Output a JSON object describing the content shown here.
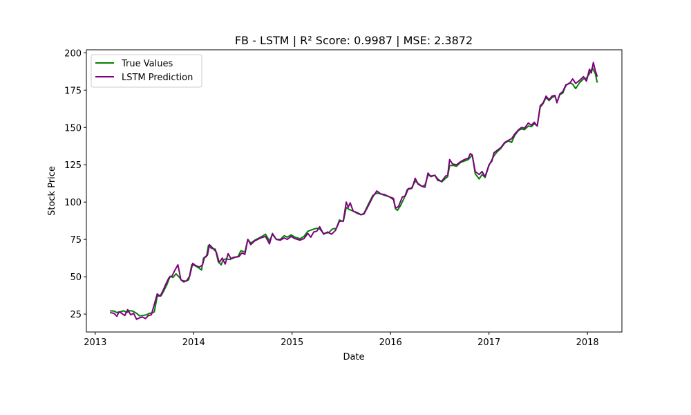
{
  "chart_data": {
    "type": "line",
    "title": "FB - LSTM | R² Score: 0.9987 | MSE: 2.3872",
    "xlabel": "Date",
    "ylabel": "Stock Price",
    "x_ticks": [
      "2013",
      "2014",
      "2015",
      "2016",
      "2017",
      "2018"
    ],
    "y_ticks": [
      25,
      50,
      75,
      100,
      125,
      150,
      175,
      200
    ],
    "xlim": [
      2012.91,
      2018.35
    ],
    "ylim": [
      13,
      202
    ],
    "grid": false,
    "legend_placement": "top-left",
    "colors": {
      "true_values": "#008000",
      "lstm_prediction": "#800080"
    },
    "series": [
      {
        "name": "True Values",
        "color": "#008000",
        "points": [
          [
            2013.15,
            27.2
          ],
          [
            2013.19,
            27.0
          ],
          [
            2013.22,
            26.0
          ],
          [
            2013.25,
            26.5
          ],
          [
            2013.29,
            27.2
          ],
          [
            2013.32,
            26.0
          ],
          [
            2013.35,
            27.3
          ],
          [
            2013.38,
            27.0
          ],
          [
            2013.42,
            25.5
          ],
          [
            2013.45,
            23.8
          ],
          [
            2013.48,
            24.0
          ],
          [
            2013.52,
            24.5
          ],
          [
            2013.55,
            25.5
          ],
          [
            2013.58,
            25.8
          ],
          [
            2013.6,
            26.5
          ],
          [
            2013.63,
            37.0
          ],
          [
            2013.67,
            37.3
          ],
          [
            2013.7,
            41.0
          ],
          [
            2013.73,
            45.0
          ],
          [
            2013.76,
            50.3
          ],
          [
            2013.79,
            49.5
          ],
          [
            2013.82,
            52.0
          ],
          [
            2013.85,
            50.0
          ],
          [
            2013.88,
            47.5
          ],
          [
            2013.92,
            47.0
          ],
          [
            2013.95,
            48.0
          ],
          [
            2013.98,
            58.0
          ],
          [
            2014.01,
            57.5
          ],
          [
            2014.05,
            56.0
          ],
          [
            2014.08,
            54.5
          ],
          [
            2014.1,
            62.5
          ],
          [
            2014.13,
            63.5
          ],
          [
            2014.15,
            71.0
          ],
          [
            2014.18,
            69.0
          ],
          [
            2014.22,
            68.5
          ],
          [
            2014.25,
            60.0
          ],
          [
            2014.28,
            58.0
          ],
          [
            2014.3,
            61.5
          ],
          [
            2014.33,
            62.0
          ],
          [
            2014.37,
            61.5
          ],
          [
            2014.4,
            63.0
          ],
          [
            2014.45,
            63.5
          ],
          [
            2014.48,
            67.5
          ],
          [
            2014.52,
            66.5
          ],
          [
            2014.55,
            75.0
          ],
          [
            2014.58,
            72.5
          ],
          [
            2014.62,
            74.5
          ],
          [
            2014.68,
            76.5
          ],
          [
            2014.73,
            78.5
          ],
          [
            2014.77,
            74.0
          ],
          [
            2014.8,
            78.5
          ],
          [
            2014.84,
            75.0
          ],
          [
            2014.88,
            75.0
          ],
          [
            2014.92,
            77.5
          ],
          [
            2014.95,
            76.5
          ],
          [
            2014.99,
            78.0
          ],
          [
            2015.03,
            76.5
          ],
          [
            2015.08,
            75.5
          ],
          [
            2015.12,
            77.0
          ],
          [
            2015.16,
            80.5
          ],
          [
            2015.2,
            81.5
          ],
          [
            2015.25,
            82.5
          ],
          [
            2015.28,
            82.0
          ],
          [
            2015.32,
            79.0
          ],
          [
            2015.37,
            79.5
          ],
          [
            2015.41,
            82.0
          ],
          [
            2015.45,
            82.5
          ],
          [
            2015.48,
            88.0
          ],
          [
            2015.52,
            87.0
          ],
          [
            2015.55,
            96.5
          ],
          [
            2015.58,
            95.0
          ],
          [
            2015.62,
            94.0
          ],
          [
            2015.66,
            92.5
          ],
          [
            2015.7,
            91.5
          ],
          [
            2015.73,
            92.5
          ],
          [
            2015.77,
            98.0
          ],
          [
            2015.82,
            104.5
          ],
          [
            2015.86,
            106.0
          ],
          [
            2015.9,
            105.5
          ],
          [
            2015.94,
            104.5
          ],
          [
            2015.99,
            103.5
          ],
          [
            2016.03,
            101.5
          ],
          [
            2016.05,
            95.5
          ],
          [
            2016.07,
            94.5
          ],
          [
            2016.1,
            97.5
          ],
          [
            2016.14,
            103.0
          ],
          [
            2016.17,
            108.5
          ],
          [
            2016.21,
            109.0
          ],
          [
            2016.25,
            114.0
          ],
          [
            2016.28,
            112.5
          ],
          [
            2016.32,
            110.5
          ],
          [
            2016.35,
            111.5
          ],
          [
            2016.38,
            118.0
          ],
          [
            2016.41,
            117.5
          ],
          [
            2016.45,
            118.0
          ],
          [
            2016.48,
            115.5
          ],
          [
            2016.52,
            113.5
          ],
          [
            2016.56,
            116.0
          ],
          [
            2016.58,
            117.0
          ],
          [
            2016.6,
            124.5
          ],
          [
            2016.64,
            124.5
          ],
          [
            2016.67,
            124.0
          ],
          [
            2016.71,
            126.5
          ],
          [
            2016.75,
            127.5
          ],
          [
            2016.79,
            128.5
          ],
          [
            2016.81,
            130.0
          ],
          [
            2016.83,
            131.5
          ],
          [
            2016.86,
            119.0
          ],
          [
            2016.9,
            115.5
          ],
          [
            2016.93,
            118.5
          ],
          [
            2016.96,
            116.5
          ],
          [
            2017.0,
            124.5
          ],
          [
            2017.03,
            128.5
          ],
          [
            2017.05,
            131.0
          ],
          [
            2017.08,
            133.5
          ],
          [
            2017.12,
            136.0
          ],
          [
            2017.16,
            139.5
          ],
          [
            2017.2,
            141.0
          ],
          [
            2017.23,
            140.0
          ],
          [
            2017.26,
            144.5
          ],
          [
            2017.3,
            148.0
          ],
          [
            2017.33,
            149.0
          ],
          [
            2017.36,
            148.5
          ],
          [
            2017.4,
            151.0
          ],
          [
            2017.43,
            150.5
          ],
          [
            2017.46,
            152.5
          ],
          [
            2017.49,
            151.0
          ],
          [
            2017.52,
            163.5
          ],
          [
            2017.55,
            166.0
          ],
          [
            2017.58,
            170.0
          ],
          [
            2017.61,
            168.0
          ],
          [
            2017.64,
            170.0
          ],
          [
            2017.67,
            171.0
          ],
          [
            2017.69,
            167.0
          ],
          [
            2017.72,
            172.0
          ],
          [
            2017.75,
            173.0
          ],
          [
            2017.78,
            178.0
          ],
          [
            2017.82,
            180.0
          ],
          [
            2017.85,
            179.0
          ],
          [
            2017.88,
            176.0
          ],
          [
            2017.92,
            180.0
          ],
          [
            2017.96,
            182.5
          ],
          [
            2017.99,
            183.0
          ],
          [
            2018.02,
            186.0
          ],
          [
            2018.05,
            190.0
          ],
          [
            2018.08,
            186.0
          ],
          [
            2018.1,
            180.0
          ]
        ]
      },
      {
        "name": "LSTM Prediction",
        "color": "#800080",
        "points": [
          [
            2013.15,
            26.0
          ],
          [
            2013.19,
            25.5
          ],
          [
            2013.22,
            23.5
          ],
          [
            2013.24,
            26.5
          ],
          [
            2013.27,
            25.5
          ],
          [
            2013.3,
            24.0
          ],
          [
            2013.33,
            28.0
          ],
          [
            2013.36,
            24.5
          ],
          [
            2013.39,
            25.5
          ],
          [
            2013.42,
            21.5
          ],
          [
            2013.45,
            22.5
          ],
          [
            2013.48,
            23.0
          ],
          [
            2013.51,
            22.0
          ],
          [
            2013.54,
            24.0
          ],
          [
            2013.57,
            24.5
          ],
          [
            2013.6,
            31.5
          ],
          [
            2013.63,
            38.5
          ],
          [
            2013.66,
            37.0
          ],
          [
            2013.69,
            41.0
          ],
          [
            2013.72,
            45.5
          ],
          [
            2013.75,
            49.5
          ],
          [
            2013.78,
            50.5
          ],
          [
            2013.81,
            54.5
          ],
          [
            2013.84,
            58.0
          ],
          [
            2013.87,
            48.0
          ],
          [
            2013.9,
            46.5
          ],
          [
            2013.93,
            47.5
          ],
          [
            2013.96,
            50.5
          ],
          [
            2013.99,
            59.0
          ],
          [
            2014.02,
            57.5
          ],
          [
            2014.06,
            56.5
          ],
          [
            2014.09,
            58.0
          ],
          [
            2014.11,
            63.0
          ],
          [
            2014.14,
            64.5
          ],
          [
            2014.16,
            71.5
          ],
          [
            2014.19,
            69.5
          ],
          [
            2014.23,
            66.5
          ],
          [
            2014.26,
            59.5
          ],
          [
            2014.29,
            62.5
          ],
          [
            2014.32,
            58.5
          ],
          [
            2014.35,
            65.5
          ],
          [
            2014.38,
            62.0
          ],
          [
            2014.42,
            63.0
          ],
          [
            2014.46,
            63.5
          ],
          [
            2014.49,
            66.0
          ],
          [
            2014.52,
            65.0
          ],
          [
            2014.55,
            75.0
          ],
          [
            2014.58,
            71.5
          ],
          [
            2014.62,
            74.0
          ],
          [
            2014.68,
            76.0
          ],
          [
            2014.73,
            77.0
          ],
          [
            2014.77,
            72.0
          ],
          [
            2014.8,
            79.0
          ],
          [
            2014.84,
            75.0
          ],
          [
            2014.88,
            74.5
          ],
          [
            2014.92,
            76.0
          ],
          [
            2014.95,
            75.0
          ],
          [
            2014.99,
            77.0
          ],
          [
            2015.03,
            75.5
          ],
          [
            2015.08,
            74.5
          ],
          [
            2015.12,
            75.5
          ],
          [
            2015.16,
            79.0
          ],
          [
            2015.19,
            76.5
          ],
          [
            2015.22,
            80.0
          ],
          [
            2015.25,
            80.5
          ],
          [
            2015.28,
            83.5
          ],
          [
            2015.32,
            78.5
          ],
          [
            2015.36,
            80.0
          ],
          [
            2015.4,
            78.5
          ],
          [
            2015.44,
            81.0
          ],
          [
            2015.48,
            87.0
          ],
          [
            2015.52,
            87.5
          ],
          [
            2015.55,
            100.0
          ],
          [
            2015.57,
            96.5
          ],
          [
            2015.59,
            99.5
          ],
          [
            2015.62,
            94.0
          ],
          [
            2015.66,
            93.0
          ],
          [
            2015.7,
            91.5
          ],
          [
            2015.73,
            92.0
          ],
          [
            2015.77,
            97.0
          ],
          [
            2015.82,
            103.5
          ],
          [
            2015.86,
            107.5
          ],
          [
            2015.9,
            105.5
          ],
          [
            2015.94,
            105.0
          ],
          [
            2015.99,
            103.5
          ],
          [
            2016.03,
            102.5
          ],
          [
            2016.05,
            96.0
          ],
          [
            2016.08,
            97.0
          ],
          [
            2016.12,
            103.5
          ],
          [
            2016.15,
            104.0
          ],
          [
            2016.18,
            109.0
          ],
          [
            2016.22,
            109.5
          ],
          [
            2016.25,
            116.0
          ],
          [
            2016.28,
            112.0
          ],
          [
            2016.32,
            110.5
          ],
          [
            2016.35,
            110.0
          ],
          [
            2016.38,
            119.5
          ],
          [
            2016.41,
            117.0
          ],
          [
            2016.45,
            118.0
          ],
          [
            2016.48,
            114.5
          ],
          [
            2016.52,
            114.0
          ],
          [
            2016.56,
            117.5
          ],
          [
            2016.58,
            118.0
          ],
          [
            2016.6,
            128.5
          ],
          [
            2016.63,
            125.5
          ],
          [
            2016.67,
            125.0
          ],
          [
            2016.71,
            127.0
          ],
          [
            2016.75,
            128.5
          ],
          [
            2016.79,
            129.5
          ],
          [
            2016.81,
            132.5
          ],
          [
            2016.83,
            131.5
          ],
          [
            2016.86,
            120.5
          ],
          [
            2016.9,
            118.5
          ],
          [
            2016.93,
            120.5
          ],
          [
            2016.96,
            117.0
          ],
          [
            2017.0,
            125.0
          ],
          [
            2017.03,
            127.5
          ],
          [
            2017.05,
            133.0
          ],
          [
            2017.08,
            134.5
          ],
          [
            2017.12,
            136.5
          ],
          [
            2017.16,
            140.0
          ],
          [
            2017.2,
            141.5
          ],
          [
            2017.23,
            142.5
          ],
          [
            2017.26,
            145.5
          ],
          [
            2017.3,
            148.5
          ],
          [
            2017.33,
            150.0
          ],
          [
            2017.36,
            149.5
          ],
          [
            2017.4,
            153.0
          ],
          [
            2017.43,
            151.5
          ],
          [
            2017.46,
            153.5
          ],
          [
            2017.49,
            151.0
          ],
          [
            2017.52,
            164.5
          ],
          [
            2017.55,
            166.5
          ],
          [
            2017.58,
            171.0
          ],
          [
            2017.61,
            168.5
          ],
          [
            2017.64,
            171.0
          ],
          [
            2017.67,
            171.5
          ],
          [
            2017.69,
            166.5
          ],
          [
            2017.72,
            172.5
          ],
          [
            2017.75,
            174.0
          ],
          [
            2017.78,
            178.5
          ],
          [
            2017.82,
            179.5
          ],
          [
            2017.85,
            182.5
          ],
          [
            2017.88,
            179.5
          ],
          [
            2017.92,
            181.5
          ],
          [
            2017.96,
            184.0
          ],
          [
            2017.99,
            181.0
          ],
          [
            2018.02,
            189.0
          ],
          [
            2018.04,
            186.5
          ],
          [
            2018.06,
            193.5
          ],
          [
            2018.08,
            188.0
          ],
          [
            2018.1,
            184.0
          ]
        ]
      }
    ]
  }
}
